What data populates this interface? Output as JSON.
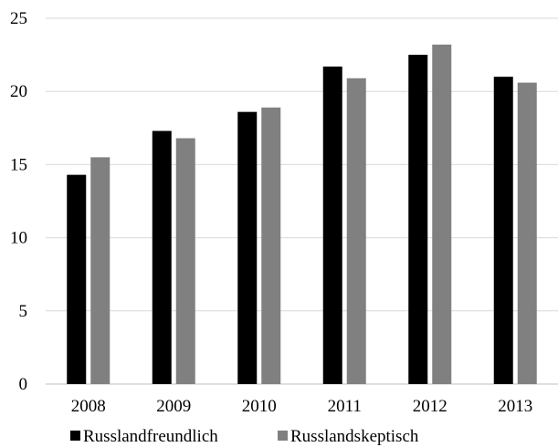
{
  "chart_data": {
    "type": "bar",
    "categories": [
      "2008",
      "2009",
      "2010",
      "2011",
      "2012",
      "2013"
    ],
    "series": [
      {
        "name": "Russlandfreundlich",
        "values": [
          14.3,
          17.3,
          18.6,
          21.7,
          22.5,
          21.0
        ],
        "color": "#000000"
      },
      {
        "name": "Russlandskeptisch",
        "values": [
          15.5,
          16.8,
          18.9,
          20.9,
          23.2,
          20.6
        ],
        "color": "#808080"
      }
    ],
    "ylim": [
      0,
      25
    ],
    "yticks": [
      "0",
      "5",
      "10",
      "15",
      "20",
      "25"
    ],
    "grid": true,
    "legend_position": "bottom"
  }
}
